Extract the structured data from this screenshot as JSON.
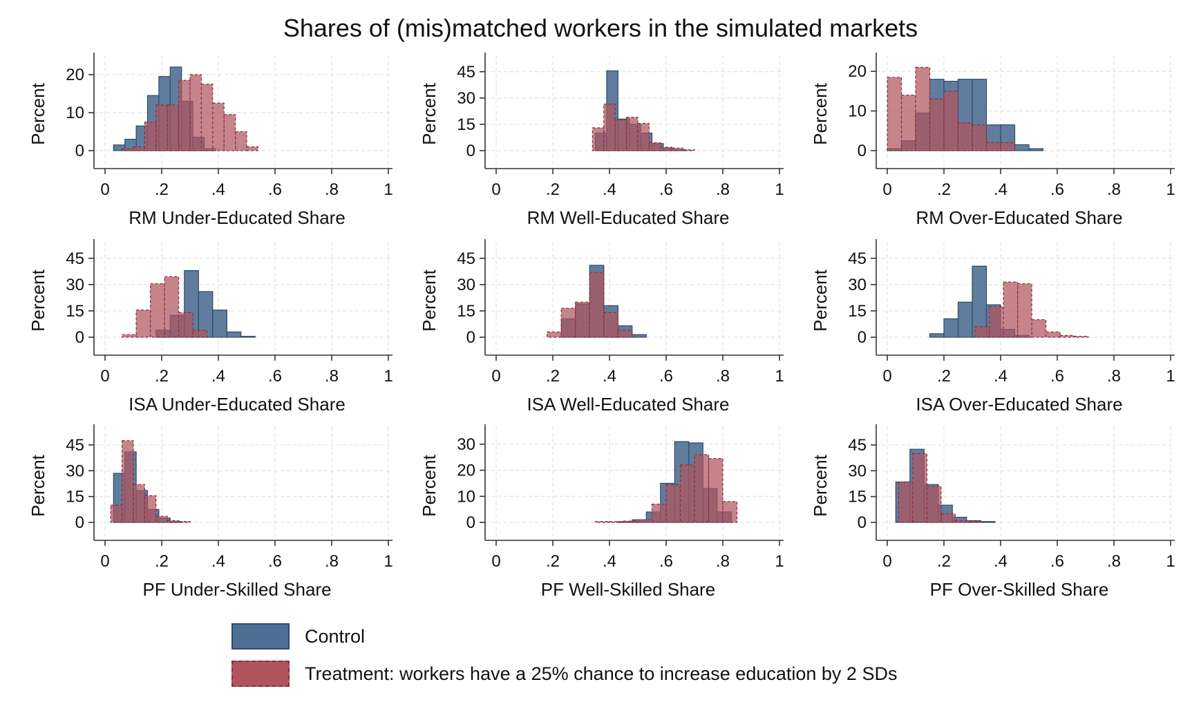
{
  "title": "Shares of (mis)matched workers in the simulated markets",
  "colors": {
    "control_fill": "#4f6f94",
    "control_stroke": "#2e4a6b",
    "treatment_fill": "#b0555e",
    "treatment_stroke": "#8a2f3a",
    "grid": "#e3e3e3",
    "axis": "#333333"
  },
  "legend": {
    "items": [
      {
        "label": "Control",
        "key": "control"
      },
      {
        "label": "Treatment: workers have a 25% chance to increase education by 2 SDs",
        "key": "treatment"
      }
    ]
  },
  "chart_data": [
    {
      "type": "bar",
      "xlabel": "RM Under-Educated Share",
      "ylabel": "Percent",
      "xlim": [
        0,
        1
      ],
      "ylim": [
        0,
        24
      ],
      "xticks": [
        "0",
        ".2",
        ".4",
        ".6",
        ".8",
        "1"
      ],
      "yticks": [
        0,
        10,
        20
      ],
      "bin_width": 0.04,
      "series": [
        {
          "name": "Control",
          "bin_start": 0.03,
          "values": [
            1.5,
            3,
            6.5,
            14.5,
            19.5,
            22,
            13,
            3.5,
            0.5
          ]
        },
        {
          "name": "Treatment",
          "bin_start": 0.06,
          "values": [
            0.5,
            1,
            7.5,
            12,
            12,
            18.5,
            20,
            17.5,
            12.5,
            9.5,
            5,
            1
          ]
        }
      ]
    },
    {
      "type": "bar",
      "xlabel": "RM Well-Educated Share",
      "ylabel": "Percent",
      "xlim": [
        0,
        1
      ],
      "ylim": [
        0,
        52
      ],
      "xticks": [
        "0",
        ".2",
        ".4",
        ".6",
        ".8",
        "1"
      ],
      "yticks": [
        0,
        15,
        30,
        45
      ],
      "bin_width": 0.04,
      "series": [
        {
          "name": "Control",
          "bin_start": 0.35,
          "values": [
            10,
            45.5,
            18,
            15,
            10,
            4,
            1.5,
            0.5
          ]
        },
        {
          "name": "Treatment",
          "bin_start": 0.34,
          "values": [
            13,
            26.5,
            17.5,
            19,
            15.5,
            4.5,
            2,
            1.5,
            0.5
          ]
        }
      ]
    },
    {
      "type": "bar",
      "xlabel": "RM Over-Educated Share",
      "ylabel": "Percent",
      "xlim": [
        0,
        1
      ],
      "ylim": [
        0,
        23
      ],
      "xticks": [
        "0",
        ".2",
        ".4",
        ".6",
        ".8",
        "1"
      ],
      "yticks": [
        0,
        10,
        20
      ],
      "bin_width": 0.05,
      "series": [
        {
          "name": "Control",
          "bin_start": 0.0,
          "values": [
            0.5,
            2.5,
            9.5,
            18,
            17.5,
            18,
            18,
            6.5,
            6.5,
            1.5,
            0.5
          ]
        },
        {
          "name": "Treatment",
          "bin_start": 0.0,
          "values": [
            18.5,
            14,
            21,
            13,
            15,
            7,
            6.5,
            2,
            2
          ]
        }
      ]
    },
    {
      "type": "bar",
      "xlabel": "ISA Under-Educated Share",
      "ylabel": "Percent",
      "xlim": [
        0,
        1
      ],
      "ylim": [
        0,
        52
      ],
      "xticks": [
        "0",
        ".2",
        ".4",
        ".6",
        ".8",
        "1"
      ],
      "yticks": [
        0,
        15,
        30,
        45
      ],
      "bin_width": 0.05,
      "series": [
        {
          "name": "Control",
          "bin_start": 0.18,
          "values": [
            4,
            12.5,
            38,
            26,
            15.5,
            3,
            0.5
          ]
        },
        {
          "name": "Treatment",
          "bin_start": 0.06,
          "values": [
            1.5,
            15.5,
            30.5,
            34.5,
            14,
            4
          ]
        }
      ]
    },
    {
      "type": "bar",
      "xlabel": "ISA Well-Educated Share",
      "ylabel": "Percent",
      "xlim": [
        0,
        1
      ],
      "ylim": [
        0,
        52
      ],
      "xticks": [
        "0",
        ".2",
        ".4",
        ".6",
        ".8",
        "1"
      ],
      "yticks": [
        0,
        15,
        30,
        45
      ],
      "bin_width": 0.05,
      "series": [
        {
          "name": "Control",
          "bin_start": 0.23,
          "values": [
            10.5,
            19,
            41,
            18,
            6.5,
            1.5
          ]
        },
        {
          "name": "Treatment",
          "bin_start": 0.18,
          "values": [
            3,
            16.5,
            20,
            37,
            14,
            4
          ]
        }
      ]
    },
    {
      "type": "bar",
      "xlabel": "ISA Over-Educated Share",
      "ylabel": "Percent",
      "xlim": [
        0,
        1
      ],
      "ylim": [
        0,
        52
      ],
      "xticks": [
        "0",
        ".2",
        ".4",
        ".6",
        ".8",
        "1"
      ],
      "yticks": [
        0,
        15,
        30,
        45
      ],
      "bin_width": 0.05,
      "series": [
        {
          "name": "Control",
          "bin_start": 0.15,
          "values": [
            2,
            10.5,
            20,
            40.5,
            18.5,
            4.5,
            1
          ]
        },
        {
          "name": "Treatment",
          "bin_start": 0.31,
          "values": [
            6,
            17.5,
            31.5,
            30.5,
            10,
            3,
            1,
            0.5
          ]
        }
      ]
    },
    {
      "type": "bar",
      "xlabel": "PF Under-Skilled Share",
      "ylabel": "Percent",
      "xlim": [
        0,
        1
      ],
      "ylim": [
        0,
        53
      ],
      "xticks": [
        "0",
        ".2",
        ".4",
        ".6",
        ".8",
        "1"
      ],
      "yticks": [
        0,
        15,
        30,
        45
      ],
      "bin_width": 0.04,
      "series": [
        {
          "name": "Control",
          "bin_start": 0.03,
          "values": [
            28.5,
            41,
            18.5,
            7.5,
            2.5,
            0.5
          ]
        },
        {
          "name": "Treatment",
          "bin_start": 0.02,
          "values": [
            10,
            47.5,
            22,
            15.5,
            3.5,
            1,
            0.5
          ]
        }
      ]
    },
    {
      "type": "bar",
      "xlabel": "PF Well-Skilled Share",
      "ylabel": "Percent",
      "xlim": [
        0,
        1
      ],
      "ylim": [
        0,
        35
      ],
      "xticks": [
        "0",
        ".2",
        ".4",
        ".6",
        ".8",
        "1"
      ],
      "yticks": [
        0,
        10,
        20,
        30
      ],
      "bin_width": 0.05,
      "series": [
        {
          "name": "Control",
          "bin_start": 0.43,
          "values": [
            0.3,
            1,
            4,
            15,
            31,
            30.5,
            13,
            4
          ]
        },
        {
          "name": "Treatment",
          "bin_start": 0.35,
          "values": [
            0.3,
            0.3,
            0.5,
            1,
            7,
            14.5,
            22,
            26,
            24.5,
            8
          ]
        }
      ]
    },
    {
      "type": "bar",
      "xlabel": "PF Over-Skilled Share",
      "ylabel": "Percent",
      "xlim": [
        0,
        1
      ],
      "ylim": [
        0,
        53
      ],
      "xticks": [
        "0",
        ".2",
        ".4",
        ".6",
        ".8",
        "1"
      ],
      "yticks": [
        0,
        15,
        30,
        45
      ],
      "bin_width": 0.05,
      "series": [
        {
          "name": "Control",
          "bin_start": 0.03,
          "values": [
            23.5,
            42.5,
            22,
            10,
            3,
            1,
            0.5
          ]
        },
        {
          "name": "Treatment",
          "bin_start": 0.04,
          "values": [
            23.5,
            40,
            21,
            5,
            1,
            0.5
          ]
        }
      ]
    }
  ]
}
